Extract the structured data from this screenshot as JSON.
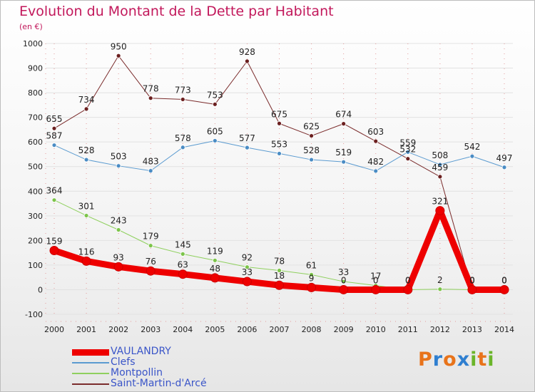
{
  "title": "Evolution du Montant de la Dette par Habitant",
  "unit": "(en €)",
  "logo": {
    "letters": [
      "P",
      "r",
      "o",
      "x",
      "i",
      "t",
      "i"
    ],
    "colors": [
      "#e8731a",
      "#2f7fd0",
      "#e8731a",
      "#2f7fd0",
      "#6bb52a",
      "#e8731a",
      "#6bb52a"
    ]
  },
  "chart_data": {
    "type": "line",
    "title": "Evolution du Montant de la Dette par Habitant",
    "subtitle": "(en €)",
    "xlabel": "",
    "ylabel": "",
    "x": [
      "2000",
      "2001",
      "2002",
      "2003",
      "2004",
      "2005",
      "2006",
      "2007",
      "2008",
      "2009",
      "2010",
      "2011",
      "2012",
      "2013",
      "2014"
    ],
    "ylim": [
      -100,
      1000
    ],
    "yticks": [
      -100,
      0,
      100,
      200,
      300,
      400,
      500,
      600,
      700,
      800,
      900,
      1000
    ],
    "grid": true,
    "legend_position": "bottom-left",
    "series": [
      {
        "name": "Saint-Martin-d'Arcé",
        "color": "#7b2c2c",
        "marker": "#6b1f1f",
        "width": 1,
        "values": [
          655,
          734,
          950,
          778,
          773,
          753,
          928,
          675,
          625,
          674,
          603,
          532,
          459,
          0,
          0
        ]
      },
      {
        "name": "Clefs",
        "color": "#5b9bd0",
        "marker": "#4a8cc4",
        "width": 1,
        "values": [
          587,
          528,
          503,
          483,
          578,
          605,
          577,
          553,
          528,
          519,
          482,
          559,
          508,
          542,
          497
        ]
      },
      {
        "name": "Montpollin",
        "color": "#8fd05e",
        "marker": "#7cc44a",
        "width": 1,
        "values": [
          364,
          301,
          243,
          179,
          145,
          119,
          92,
          78,
          61,
          33,
          17,
          0,
          2,
          0,
          0
        ]
      },
      {
        "name": "VAULANDRY",
        "color": "#ee0000",
        "marker": "#ee0000",
        "width": 9,
        "values": [
          159,
          116,
          93,
          76,
          63,
          48,
          33,
          18,
          9,
          0,
          0,
          0,
          321,
          0,
          0
        ]
      }
    ]
  },
  "legend": [
    {
      "name": "VAULANDRY",
      "color": "#ee0000",
      "width": 9
    },
    {
      "name": "Clefs",
      "color": "#5b9bd0",
      "width": 2
    },
    {
      "name": "Montpollin",
      "color": "#8fd05e",
      "width": 2
    },
    {
      "name": "Saint-Martin-d'Arcé",
      "color": "#7b2c2c",
      "width": 2
    }
  ]
}
